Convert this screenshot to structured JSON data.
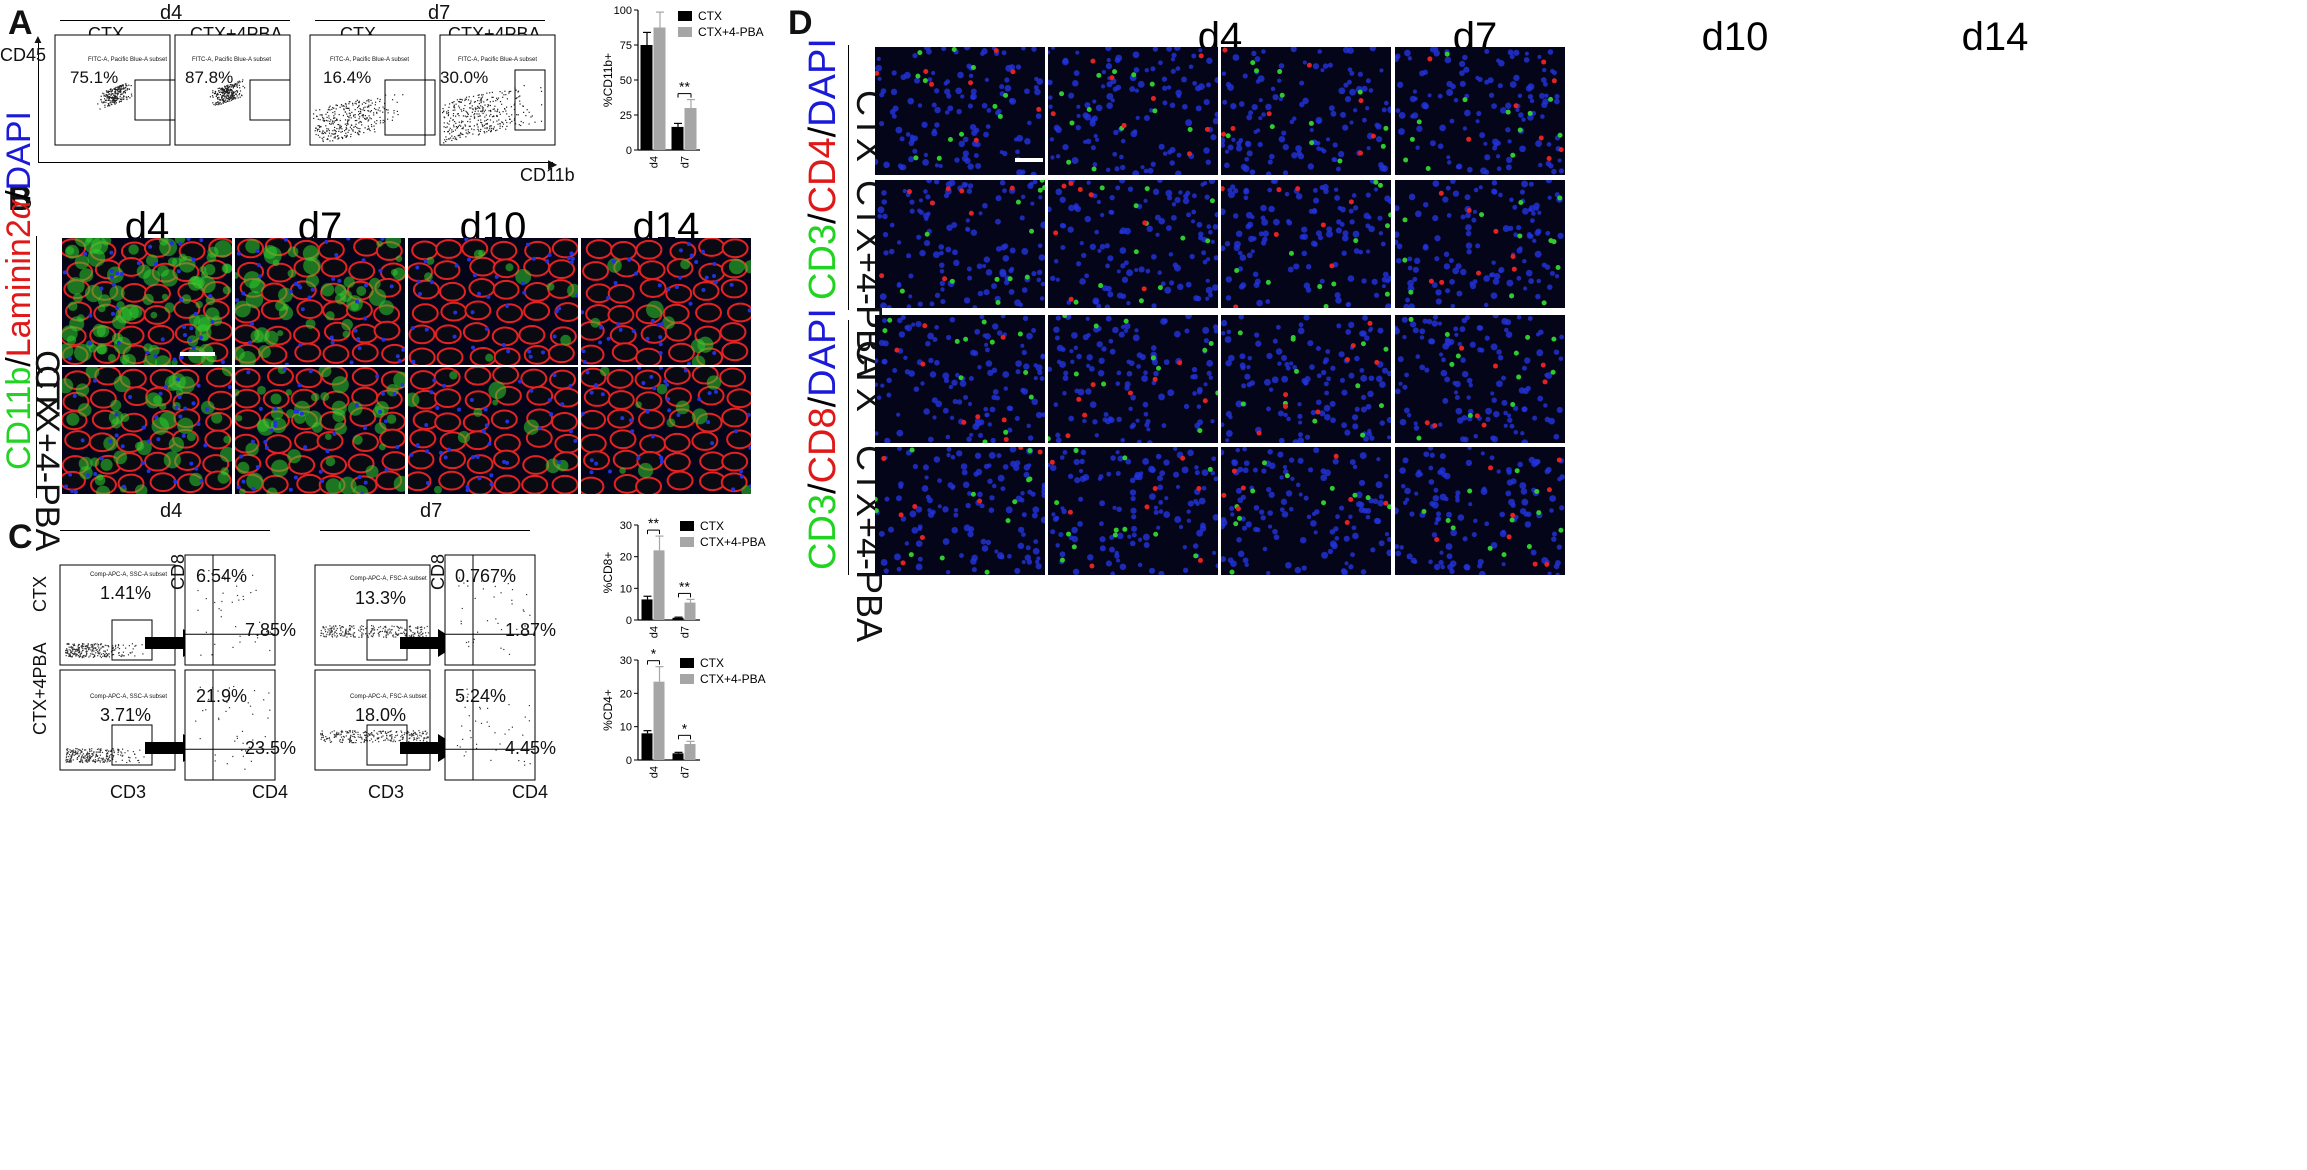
{
  "panel_letters": [
    "A",
    "B",
    "C",
    "D"
  ],
  "panelA": {
    "groups": [
      {
        "label": "d4",
        "conditions": [
          "CTX",
          "CTX+4PBA"
        ],
        "percents": [
          "75.1%",
          "87.8%"
        ]
      },
      {
        "label": "d7",
        "conditions": [
          "CTX",
          "CTX+4PBA"
        ],
        "percents": [
          "16.4%",
          "30.0%"
        ]
      }
    ],
    "gate_label": "FITC-A, Pacific Blue-A subset",
    "y_axis": "CD45",
    "x_axis": "CD11b"
  },
  "panelB": {
    "columns": [
      "d4",
      "d7",
      "d10",
      "d14"
    ],
    "rows": [
      "CTX",
      "CTX+4-PBA"
    ],
    "stain_parts": [
      "CD11b",
      "/",
      "Laminin2",
      "α",
      "/",
      "DAPI"
    ]
  },
  "panelC": {
    "days": [
      "d4",
      "d7"
    ],
    "conditions": [
      "CTX",
      "CTX+4PBA"
    ],
    "gate_label": "Comp-APC-A, SSC-A subset",
    "gate_label_fsc": "Comp-APC-A, FSC-A subset",
    "cd3_percents": [
      [
        "1.41%",
        "13.3%"
      ],
      [
        "3.71%",
        "18.0%"
      ]
    ],
    "cd8_percents": [
      [
        "6.54%",
        "0.767%"
      ],
      [
        "21.9%",
        "5.24%"
      ]
    ],
    "cd4_percents": [
      [
        "7.85%",
        "1.87%"
      ],
      [
        "23.5%",
        "4.45%"
      ]
    ],
    "x_axis_cd3": "CD3",
    "x_axis_cd4": "CD4",
    "y_axis_cd8": "CD8"
  },
  "panelD": {
    "columns": [
      "d4",
      "d7",
      "d10",
      "d14"
    ],
    "rows": [
      "CTX",
      "CTX+4-PBA",
      "CTX",
      "CTX+4-PBA"
    ],
    "stain_top": [
      "CD3",
      "/",
      "CD4",
      "/",
      "DAPI"
    ],
    "stain_bottom": [
      "CD3",
      "/",
      "CD8",
      "/",
      "DAPI"
    ]
  },
  "colors": {
    "ctx": "#000000",
    "pba": "#a6a6a6",
    "laminin": "#e52222",
    "cd11b": "#2ecc2e",
    "dapi": "#2233dd"
  },
  "chart_data": [
    {
      "type": "bar",
      "categories": [
        "d4",
        "d7"
      ],
      "series": [
        {
          "name": "CTX",
          "values": [
            75,
            16.5
          ],
          "errors": [
            9,
            2.5
          ]
        },
        {
          "name": "CTX+4-PBA",
          "values": [
            87.5,
            30
          ],
          "errors": [
            11,
            6
          ]
        }
      ],
      "ylabel": "%CD11b+",
      "ylim": [
        0,
        100
      ],
      "yticks": [
        0,
        25,
        50,
        75,
        100
      ],
      "significance": [
        {
          "category": "d7",
          "label": "**"
        }
      ],
      "legend": "top-right"
    },
    {
      "type": "bar",
      "categories": [
        "d4",
        "d7"
      ],
      "series": [
        {
          "name": "CTX",
          "values": [
            6.5,
            0.7
          ],
          "errors": [
            1,
            0.2
          ]
        },
        {
          "name": "CTX+4-PBA",
          "values": [
            22,
            5.5
          ],
          "errors": [
            4.5,
            1
          ]
        }
      ],
      "ylabel": "%CD8+",
      "ylim": [
        0,
        30
      ],
      "yticks": [
        0,
        10,
        20,
        30
      ],
      "significance": [
        {
          "category": "d4",
          "label": "**"
        },
        {
          "category": "d7",
          "label": "**"
        }
      ],
      "legend": "top-right"
    },
    {
      "type": "bar",
      "categories": [
        "d4",
        "d7"
      ],
      "series": [
        {
          "name": "CTX",
          "values": [
            8,
            2
          ],
          "errors": [
            0.8,
            0.3
          ]
        },
        {
          "name": "CTX+4-PBA",
          "values": [
            23.5,
            4.8
          ],
          "errors": [
            4.5,
            0.8
          ]
        }
      ],
      "ylabel": "%CD4+",
      "ylim": [
        0,
        30
      ],
      "yticks": [
        0,
        10,
        20,
        30
      ],
      "significance": [
        {
          "category": "d4",
          "label": "*"
        },
        {
          "category": "d7",
          "label": "*"
        }
      ],
      "legend": "top-right"
    }
  ]
}
